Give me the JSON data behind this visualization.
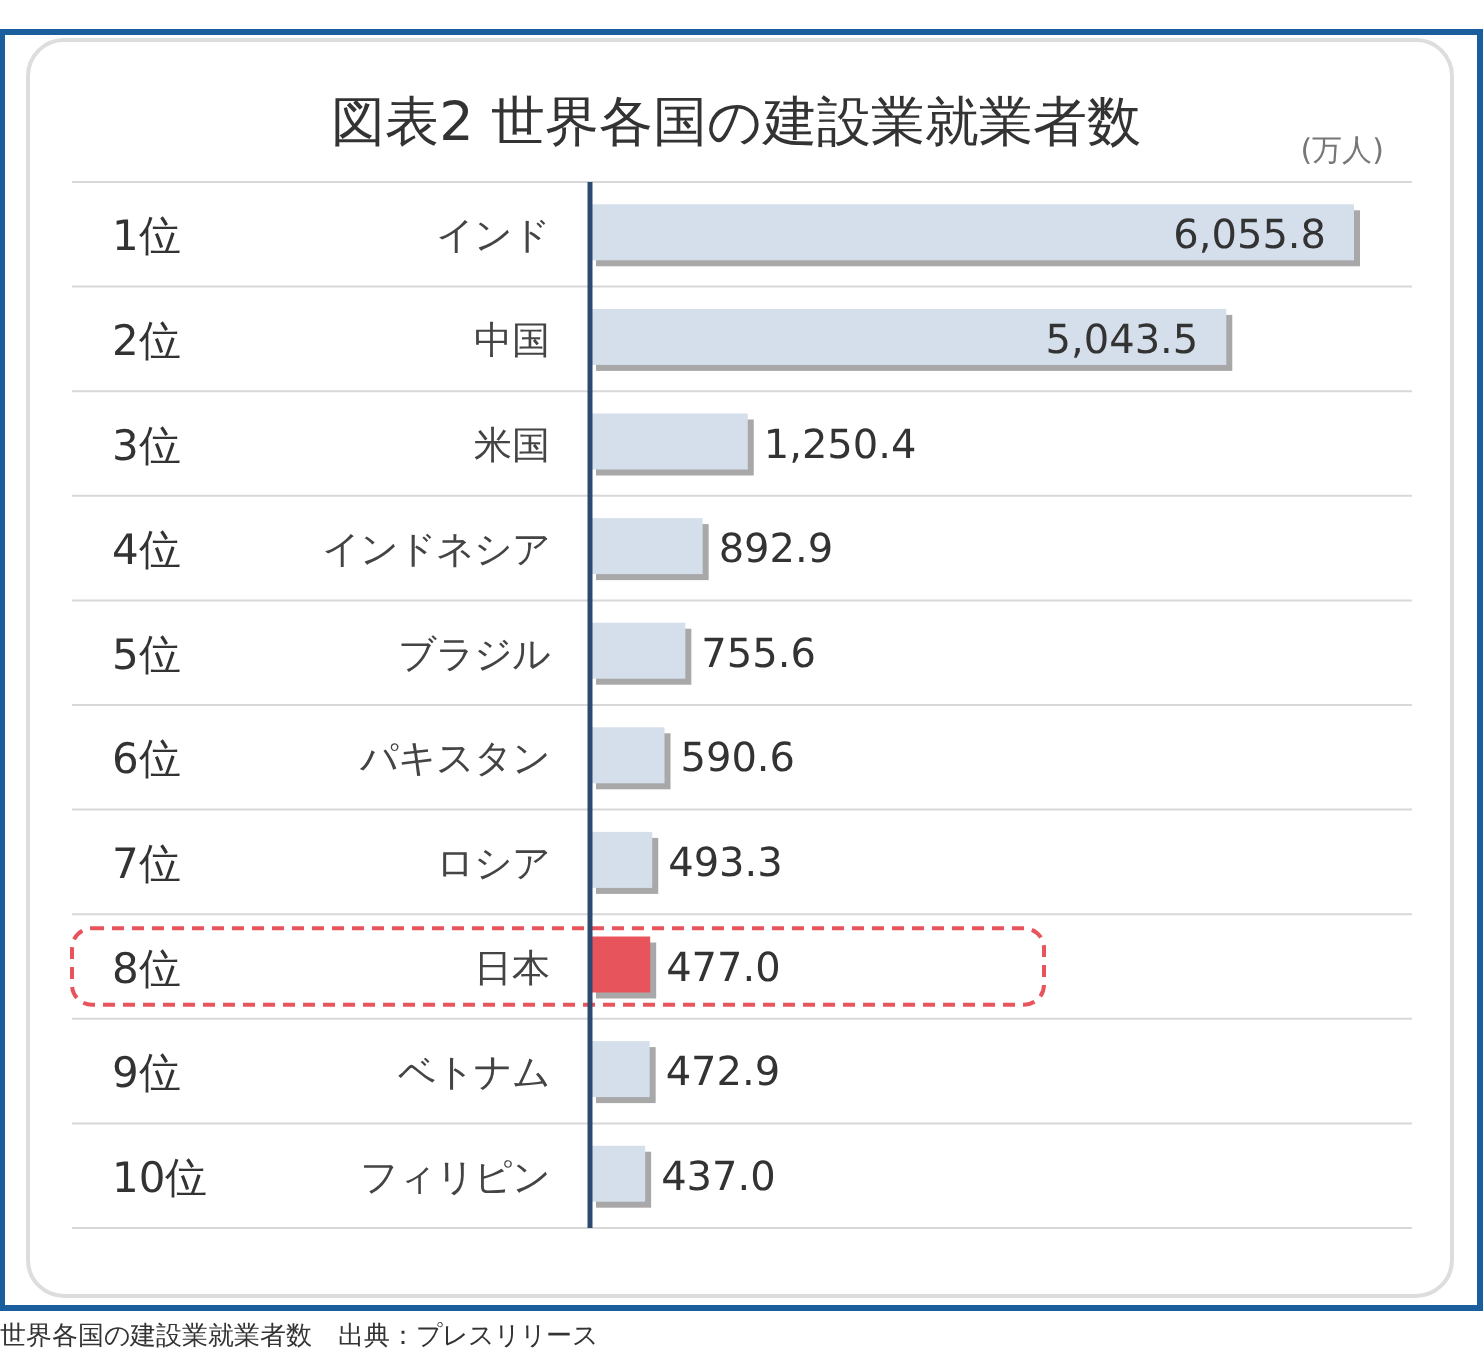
{
  "chart_data": {
    "type": "bar",
    "orientation": "horizontal",
    "title": "図表2 世界各国の建設業就業者数",
    "xlabel": "(万人)",
    "categories": [
      "インド",
      "中国",
      "米国",
      "インドネシア",
      "ブラジル",
      "パキスタン",
      "ロシア",
      "日本",
      "ベトナム",
      "フィリピン"
    ],
    "values": [
      6055.8,
      5043.5,
      1250.4,
      892.9,
      755.6,
      590.6,
      493.3,
      477.0,
      472.9,
      437.0
    ],
    "value_labels": [
      "6,055.8",
      "5,043.5",
      "1,250.4",
      "892.9",
      "755.6",
      "590.6",
      "493.3",
      "477.0",
      "472.9",
      "437.0"
    ],
    "colors": [
      "#d5dfeb",
      "#d5dfeb",
      "#d5dfeb",
      "#d5dfeb",
      "#d5dfeb",
      "#d5dfeb",
      "#d5dfeb",
      "#e8545c",
      "#d5dfeb",
      "#d5dfeb"
    ],
    "annotations": [
      "1位",
      "2位",
      "3位",
      "4位",
      "5位",
      "6位",
      "7位",
      "8位",
      "9位",
      "10位",
      "世界各国の建設業就業者数　出典：プレスリリース"
    ]
  }
}
